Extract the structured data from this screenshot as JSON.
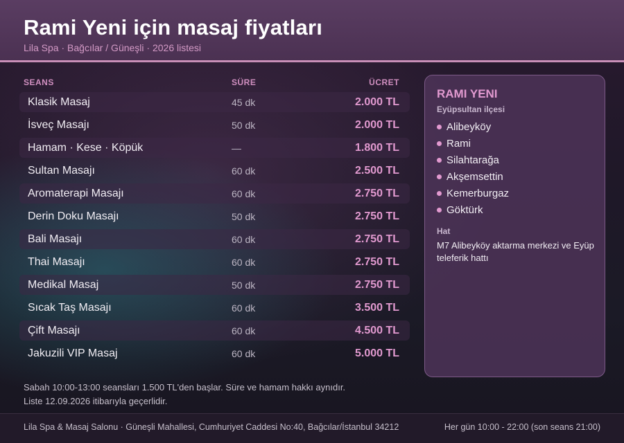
{
  "header": {
    "title": "Rami Yeni için masaj fiyatları",
    "subtitle": "Lila Spa · Bağcılar / Güneşli · 2026 listesi"
  },
  "table": {
    "columns": {
      "session": "SEANS",
      "duration": "SÜRE",
      "price": "ÜCRET"
    },
    "rows": [
      {
        "name": "Klasik Masaj",
        "duration": "45 dk",
        "price": "2.000 TL"
      },
      {
        "name": "İsveç Masajı",
        "duration": "50 dk",
        "price": "2.000 TL"
      },
      {
        "name": "Hamam · Kese · Köpük",
        "duration": "—",
        "price": "1.800 TL"
      },
      {
        "name": "Sultan Masajı",
        "duration": "60 dk",
        "price": "2.500 TL"
      },
      {
        "name": "Aromaterapi Masajı",
        "duration": "60 dk",
        "price": "2.750 TL"
      },
      {
        "name": "Derin Doku Masajı",
        "duration": "50 dk",
        "price": "2.750 TL"
      },
      {
        "name": "Bali Masajı",
        "duration": "60 dk",
        "price": "2.750 TL"
      },
      {
        "name": "Thai Masajı",
        "duration": "60 dk",
        "price": "2.750 TL"
      },
      {
        "name": "Medikal Masaj",
        "duration": "50 dk",
        "price": "2.750 TL"
      },
      {
        "name": "Sıcak Taş Masajı",
        "duration": "60 dk",
        "price": "3.500 TL"
      },
      {
        "name": "Çift Masajı",
        "duration": "60 dk",
        "price": "4.500 TL"
      },
      {
        "name": "Jakuzili VIP Masaj",
        "duration": "60 dk",
        "price": "5.000 TL"
      }
    ]
  },
  "card": {
    "title": "RAMI YENI",
    "subtitle": "Eyüpsultan ilçesi",
    "neighbourhoods": [
      "Alibeyköy",
      "Rami",
      "Silahtarağa",
      "Akşemsettin",
      "Kemerburgaz",
      "Göktürk"
    ],
    "transit_label": "Hat",
    "transit_text": "M7 Alibeyköy aktarma merkezi ve Eyüp teleferik hattı"
  },
  "notes": {
    "line1": "Sabah 10:00-13:00 seansları 1.500 TL'den başlar. Süre ve hamam hakkı aynıdır.",
    "line2": "Liste 12.09.2026 itibarıyla geçerlidir."
  },
  "footer": {
    "address": "Lila Spa & Masaj Salonu · Güneşli Mahallesi, Cumhuriyet Caddesi No:40, Bağcılar/İstanbul 34212",
    "hours": "Her gün 10:00 - 22:00 (son seans 21:00)"
  },
  "colors": {
    "accent": "#e29ad0",
    "header_bg": "#4b3152",
    "card_bg": "#4e3458"
  }
}
